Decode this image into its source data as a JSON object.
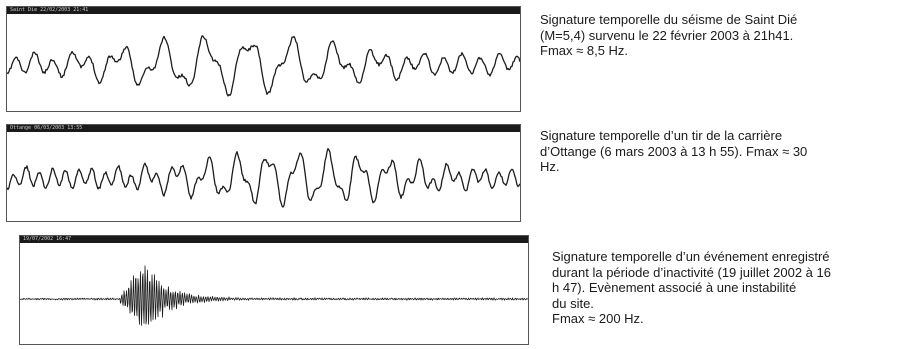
{
  "panels": [
    {
      "titlebar_text": "Saint Die 22/02/2003 21:41",
      "titlebar_right": "",
      "caption_lines": [
        "Signature temporelle du séisme de Saint Dié",
        "(M=5,4) survenu le 22 février 2003 à 21h41.",
        "Fmax ≈ 8,5 Hz."
      ]
    },
    {
      "titlebar_text": "Ottange 06/03/2003 13:55",
      "titlebar_right": "",
      "caption_lines": [
        "Signature temporelle d’un tir de la carrière",
        "d’Ottange (6 mars 2003 à 13 h 55). Fmax ≈ 30",
        "Hz."
      ]
    },
    {
      "titlebar_text": "19/07/2002 16:47",
      "titlebar_right": "",
      "caption_lines": [
        "Signature temporelle d’un événement enregistré",
        "durant la période d’inactivité (19 juillet 2002 à 16",
        "h 47). Evènement associé à une instabilité",
        "du site.",
        "Fmax ≈ 200 Hz."
      ]
    }
  ],
  "colors": {
    "trace": "#1c1c1c",
    "titlebar": "#1a1a1a",
    "frame": "#555555"
  }
}
